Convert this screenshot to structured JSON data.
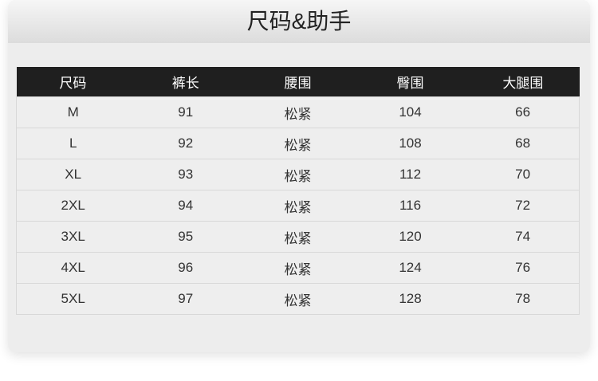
{
  "title": "尺码&助手",
  "columns": [
    "尺码",
    "裤长",
    "腰围",
    "臀围",
    "大腿围"
  ],
  "rows": [
    [
      "M",
      "91",
      "松紧",
      "104",
      "66"
    ],
    [
      "L",
      "92",
      "松紧",
      "108",
      "68"
    ],
    [
      "XL",
      "93",
      "松紧",
      "112",
      "70"
    ],
    [
      "2XL",
      "94",
      "松紧",
      "116",
      "72"
    ],
    [
      "3XL",
      "95",
      "松紧",
      "120",
      "74"
    ],
    [
      "4XL",
      "96",
      "松紧",
      "124",
      "76"
    ],
    [
      "5XL",
      "97",
      "松紧",
      "128",
      "78"
    ]
  ]
}
